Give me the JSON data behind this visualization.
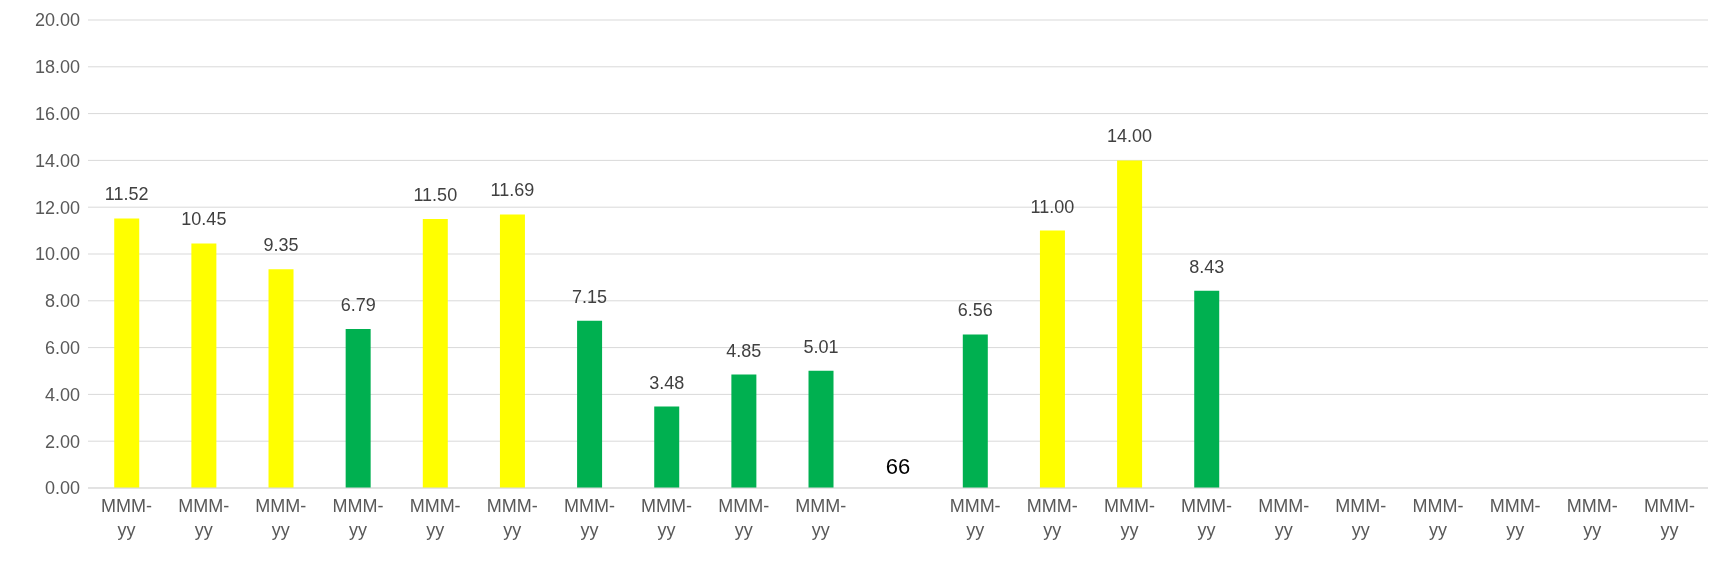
{
  "chart_data": {
    "type": "bar",
    "categories": [
      "MMM-yy",
      "MMM-yy",
      "MMM-yy",
      "MMM-yy",
      "MMM-yy",
      "MMM-yy",
      "MMM-yy",
      "MMM-yy",
      "MMM-yy",
      "MMM-yy",
      null,
      "MMM-yy",
      "MMM-yy",
      "MMM-yy",
      "MMM-yy",
      "MMM-yy",
      "MMM-yy",
      "MMM-yy",
      "MMM-yy",
      "MMM-yy",
      "MMM-yy"
    ],
    "values": [
      11.52,
      10.45,
      9.35,
      6.79,
      11.5,
      11.69,
      7.15,
      3.48,
      4.85,
      5.01,
      null,
      6.56,
      11.0,
      14.0,
      8.43,
      null,
      null,
      null,
      null,
      null,
      null
    ],
    "colors": [
      "#ffff00",
      "#ffff00",
      "#ffff00",
      "#00b050",
      "#ffff00",
      "#ffff00",
      "#00b050",
      "#00b050",
      "#00b050",
      "#00b050",
      "#00b050",
      "#00b050",
      "#ffff00",
      "#ffff00",
      "#00b050",
      "#00b050",
      "#00b050",
      "#00b050",
      "#00b050",
      "#00b050",
      "#00b050"
    ],
    "value_labels": [
      "11.52",
      "10.45",
      "9.35",
      "6.79",
      "11.50",
      "11.69",
      "7.15",
      "3.48",
      "4.85",
      "5.01",
      null,
      "6.56",
      "11.00",
      "14.00",
      "8.43",
      null,
      null,
      null,
      null,
      null,
      null
    ],
    "annotations": [
      "66"
    ],
    "ylim": [
      0,
      20
    ],
    "yticks": [
      {
        "value": 0,
        "label": "0.00"
      },
      {
        "value": 2,
        "label": "2.00"
      },
      {
        "value": 4,
        "label": "4.00"
      },
      {
        "value": 6,
        "label": "6.00"
      },
      {
        "value": 8,
        "label": "8.00"
      },
      {
        "value": 10,
        "label": "10.00"
      },
      {
        "value": 12,
        "label": "12.00"
      },
      {
        "value": 14,
        "label": "14.00"
      },
      {
        "value": 16,
        "label": "16.00"
      },
      {
        "value": 18,
        "label": "18.00"
      },
      {
        "value": 20,
        "label": "20.00"
      }
    ],
    "grid": "y"
  }
}
